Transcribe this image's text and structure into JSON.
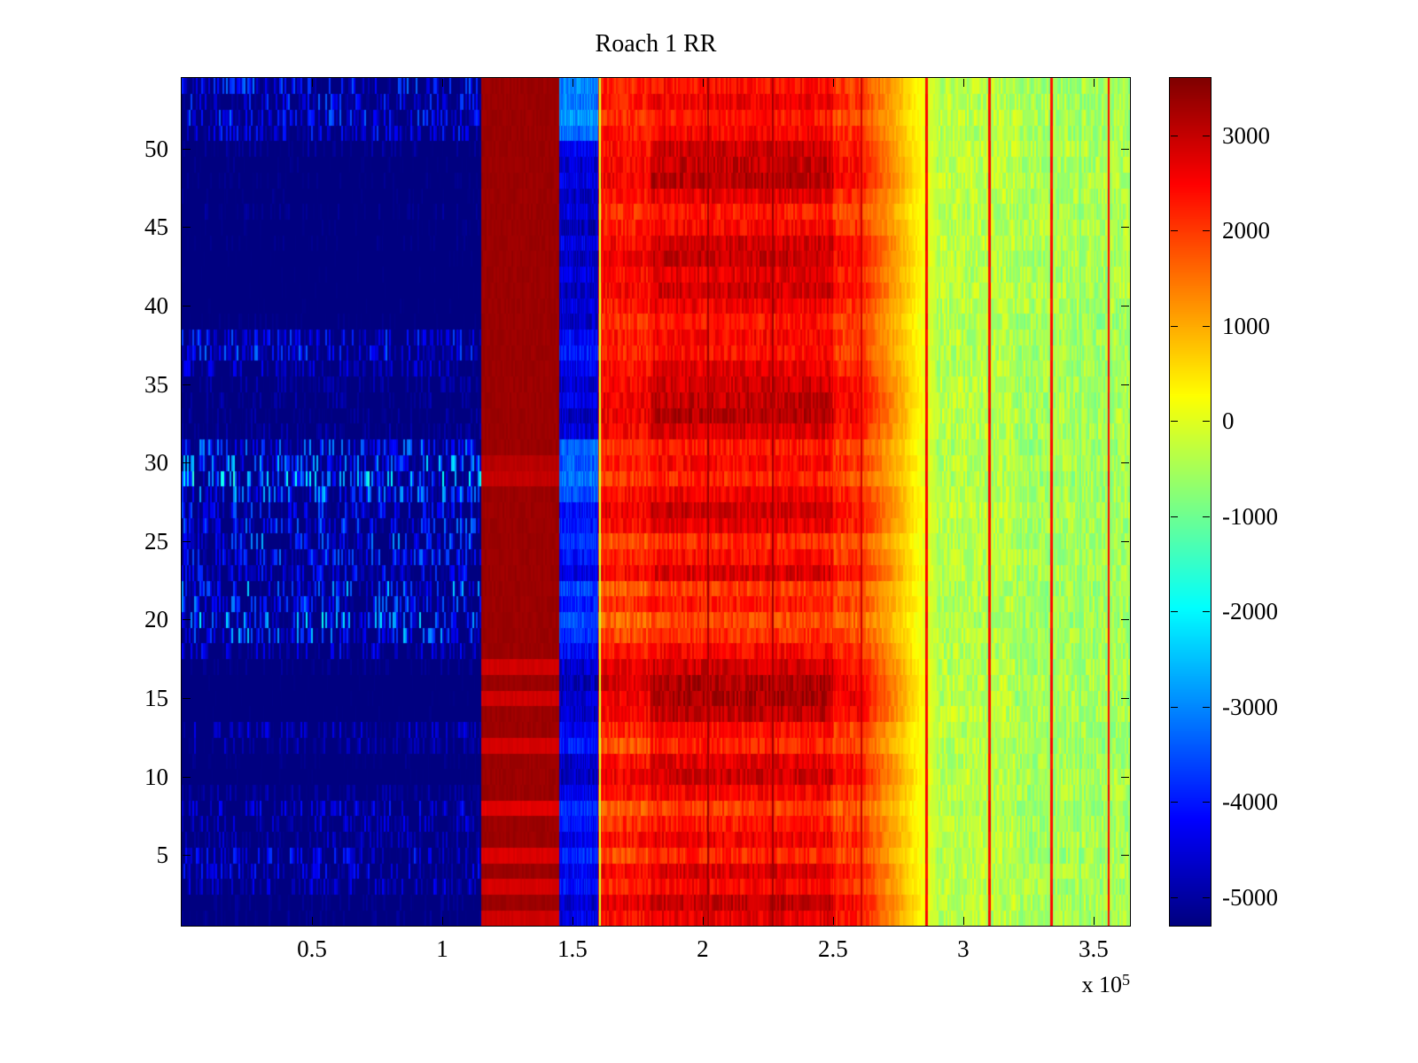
{
  "page": {
    "background": "#ffffff",
    "axis_color": "#000000"
  },
  "chart_data": {
    "type": "heatmap",
    "title": "Roach 1 RR",
    "xlabel": "",
    "ylabel": "",
    "x_range": [
      0,
      364000
    ],
    "y_range": [
      0.5,
      54.5
    ],
    "rows": 54,
    "x_ticks": [
      {
        "value": 50000,
        "label": "0.5"
      },
      {
        "value": 100000,
        "label": "1"
      },
      {
        "value": 150000,
        "label": "1.5"
      },
      {
        "value": 200000,
        "label": "2"
      },
      {
        "value": 250000,
        "label": "2.5"
      },
      {
        "value": 300000,
        "label": "3"
      },
      {
        "value": 350000,
        "label": "3.5"
      }
    ],
    "x_axis_multiplier": {
      "base": "x 10",
      "exp": "5"
    },
    "y_ticks": [
      5,
      10,
      15,
      20,
      25,
      30,
      35,
      40,
      45,
      50
    ],
    "colormap": "jet",
    "clim": [
      -5300,
      3600
    ],
    "colorbar_ticks": [
      3000,
      2000,
      1000,
      0,
      -1000,
      -2000,
      -3000,
      -4000,
      -5000
    ],
    "layout_hints": {
      "colorbar_position": "right",
      "grid": false,
      "box": true
    },
    "grid": {
      "row_order": "top-to-bottom",
      "x_edges": [
        0,
        115000,
        145000,
        160000,
        180000,
        250000,
        260000,
        290000,
        320000,
        364000
      ],
      "col_roles": [
        "left-blue",
        "dark-red-band",
        "narrow-blue-band",
        "red-early",
        "red-main",
        "red-late",
        "orange-transition",
        "yellow-inner",
        "yellow-outer"
      ],
      "values": [
        [
          -5500,
          3350,
          -3000,
          2200,
          2400,
          2000,
          900,
          -250,
          -450
        ],
        [
          -5500,
          3350,
          -3100,
          2300,
          2600,
          2100,
          950,
          -300,
          -450
        ],
        [
          -5500,
          3350,
          -2900,
          2100,
          2300,
          1900,
          850,
          -250,
          -400
        ],
        [
          -5500,
          3350,
          -3200,
          2300,
          2500,
          2100,
          950,
          -300,
          -450
        ],
        [
          -5500,
          3350,
          -4300,
          2400,
          2900,
          2300,
          1000,
          -200,
          -350
        ],
        [
          -5500,
          3350,
          -4600,
          2500,
          3000,
          2400,
          1100,
          -250,
          -400
        ],
        [
          -5500,
          3350,
          -4400,
          2600,
          3100,
          2500,
          1150,
          -200,
          -350
        ],
        [
          -5500,
          3350,
          -4700,
          2400,
          2700,
          2200,
          1000,
          -250,
          -400
        ],
        [
          -5500,
          3350,
          -4500,
          2100,
          2300,
          1900,
          850,
          -300,
          -450
        ],
        [
          -5500,
          3350,
          -4800,
          2300,
          2500,
          2100,
          950,
          -250,
          -350
        ],
        [
          -5500,
          3350,
          -4400,
          2500,
          2900,
          2400,
          1100,
          -200,
          -350
        ],
        [
          -5500,
          3350,
          -4700,
          2600,
          3000,
          2500,
          1150,
          -250,
          -400
        ],
        [
          -5500,
          3350,
          -4500,
          2400,
          2700,
          2200,
          1000,
          -300,
          -450
        ],
        [
          -5500,
          3350,
          -4800,
          2500,
          2900,
          2400,
          1100,
          -250,
          -350
        ],
        [
          -5500,
          3350,
          -4500,
          2300,
          2600,
          2100,
          950,
          -300,
          -400
        ],
        [
          -5500,
          3350,
          -4700,
          2100,
          2300,
          1900,
          850,
          -350,
          -500
        ],
        [
          -5500,
          3350,
          -4200,
          2300,
          2500,
          2000,
          900,
          -300,
          -450
        ],
        [
          -5500,
          3350,
          -4000,
          2200,
          2400,
          2000,
          900,
          -350,
          -500
        ],
        [
          -5500,
          3350,
          -4300,
          2400,
          2700,
          2200,
          1000,
          -300,
          -450
        ],
        [
          -5500,
          3350,
          -4600,
          2500,
          2900,
          2400,
          1100,
          -250,
          -400
        ],
        [
          -5500,
          3350,
          -4400,
          2600,
          3000,
          2500,
          1150,
          -300,
          -450
        ],
        [
          -5500,
          3350,
          -4700,
          2600,
          3100,
          2500,
          1150,
          -250,
          -400
        ],
        [
          -5500,
          3350,
          -4500,
          2500,
          2800,
          2300,
          1050,
          -300,
          -450
        ],
        [
          -5500,
          3350,
          -3300,
          2100,
          2300,
          1900,
          850,
          -350,
          -500
        ],
        [
          -5500,
          3100,
          -3400,
          2300,
          2500,
          2100,
          950,
          -300,
          -450
        ],
        [
          -5500,
          3000,
          -3200,
          2000,
          2200,
          1800,
          800,
          -350,
          -500
        ],
        [
          -5500,
          3350,
          -3500,
          2400,
          2600,
          2200,
          1000,
          -300,
          -450
        ],
        [
          -5500,
          3350,
          -4200,
          2600,
          2900,
          2400,
          1100,
          -250,
          -400
        ],
        [
          -5500,
          3350,
          -4000,
          2400,
          2700,
          2300,
          1050,
          -300,
          -450
        ],
        [
          -5500,
          3350,
          -3800,
          1800,
          2100,
          1800,
          800,
          -350,
          -500
        ],
        [
          -5500,
          3350,
          -4100,
          2200,
          2400,
          2000,
          900,
          -300,
          -450
        ],
        [
          -5500,
          3350,
          -4400,
          2500,
          2800,
          2300,
          1050,
          -250,
          -400
        ],
        [
          -5500,
          3350,
          -3600,
          1700,
          2000,
          1700,
          750,
          -350,
          -500
        ],
        [
          -5500,
          3350,
          -3900,
          2100,
          2300,
          1900,
          850,
          -300,
          -450
        ],
        [
          -5500,
          3350,
          -3500,
          1600,
          1900,
          1600,
          700,
          -350,
          -500
        ],
        [
          -5500,
          3350,
          -3800,
          1900,
          2100,
          1800,
          800,
          -300,
          -450
        ],
        [
          -5500,
          3350,
          -4200,
          2300,
          2500,
          2100,
          950,
          -350,
          -500
        ],
        [
          -5500,
          2900,
          -4600,
          2600,
          2900,
          2400,
          1100,
          -300,
          -450
        ],
        [
          -5500,
          3350,
          -4800,
          2800,
          3200,
          2600,
          1200,
          -250,
          -400
        ],
        [
          -5500,
          2900,
          -4600,
          2600,
          3200,
          2600,
          1200,
          -300,
          -450
        ],
        [
          -5500,
          3350,
          -4700,
          2500,
          3000,
          2500,
          1150,
          -250,
          -400
        ],
        [
          -5500,
          3350,
          -4300,
          2200,
          2400,
          2000,
          900,
          -300,
          -450
        ],
        [
          -5500,
          2850,
          -4000,
          1800,
          2200,
          1900,
          850,
          -350,
          -500
        ],
        [
          -5500,
          3350,
          -4600,
          2400,
          2700,
          2300,
          1050,
          -300,
          -450
        ],
        [
          -5500,
          3350,
          -4700,
          2600,
          2900,
          2400,
          1100,
          -250,
          -400
        ],
        [
          -5500,
          3350,
          -4400,
          2300,
          2500,
          2100,
          950,
          -300,
          -450
        ],
        [
          -5500,
          2750,
          -3800,
          1700,
          2000,
          1700,
          750,
          -350,
          -500
        ],
        [
          -5500,
          3350,
          -4100,
          2100,
          2300,
          2000,
          900,
          -300,
          -450
        ],
        [
          -5500,
          3350,
          -4400,
          2400,
          2600,
          2200,
          1000,
          -250,
          -400
        ],
        [
          -5500,
          2800,
          -3900,
          1900,
          2200,
          1900,
          850,
          -300,
          -450
        ],
        [
          -5500,
          3350,
          -4300,
          2500,
          2800,
          2300,
          1050,
          -250,
          -400
        ],
        [
          -5500,
          2850,
          -4100,
          2200,
          2500,
          2100,
          950,
          -300,
          -450
        ],
        [
          -5500,
          3350,
          -4600,
          2700,
          3000,
          2500,
          1150,
          -250,
          -400
        ],
        [
          -5500,
          2900,
          -4400,
          2400,
          2700,
          2300,
          1050,
          -300,
          -450
        ]
      ],
      "left_noise": [
        900,
        800,
        850,
        700,
        250,
        150,
        150,
        150,
        200,
        150,
        150,
        100,
        100,
        100,
        100,
        150,
        800,
        900,
        500,
        300,
        300,
        250,
        300,
        1000,
        1300,
        1500,
        1200,
        800,
        900,
        1100,
        900,
        700,
        1200,
        1000,
        1400,
        1200,
        600,
        200,
        100,
        100,
        100,
        500,
        400,
        150,
        100,
        300,
        600,
        500,
        400,
        700,
        600,
        500,
        200,
        200
      ],
      "noise_amplitude": {
        "narrow_band": 900,
        "red_region": 720,
        "transition": 500,
        "yellow_region": 860
      }
    },
    "vlines": [
      {
        "x": 160500,
        "value": -100,
        "width": 2
      },
      {
        "x": 202000,
        "value": 3300,
        "width": 2
      },
      {
        "x": 227000,
        "value": 3300,
        "width": 2
      },
      {
        "x": 261000,
        "value": 2900,
        "width": 2
      },
      {
        "x": 286000,
        "value": 2400,
        "width": 3
      },
      {
        "x": 310000,
        "value": 2400,
        "width": 3
      },
      {
        "x": 323000,
        "value": -700,
        "width": 1
      },
      {
        "x": 334000,
        "value": 2400,
        "width": 3
      },
      {
        "x": 345000,
        "value": -900,
        "width": 2
      },
      {
        "x": 350500,
        "value": -900,
        "width": 1
      },
      {
        "x": 356000,
        "value": 2400,
        "width": 2
      }
    ]
  }
}
